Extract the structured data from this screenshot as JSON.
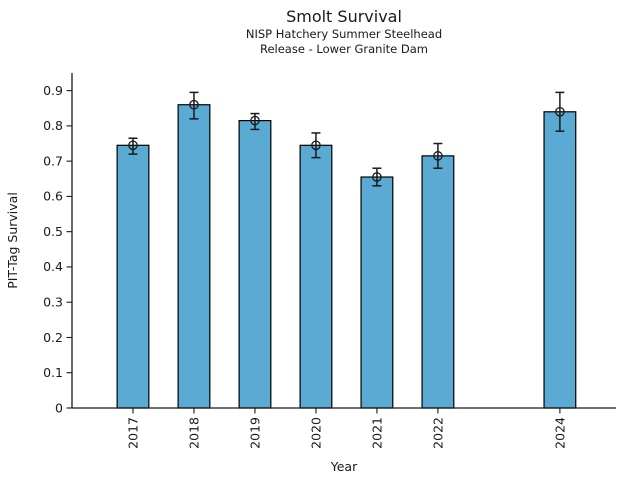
{
  "chart_data": {
    "type": "bar",
    "title": "Smolt Survival",
    "subtitle_line1": "NISP Hatchery Summer Steelhead",
    "subtitle_line2": "Release - Lower Granite Dam",
    "xlabel": "Year",
    "ylabel": "PIT-Tag Survival",
    "categories": [
      "2017",
      "2018",
      "2019",
      "2020",
      "2021",
      "2022",
      "2024"
    ],
    "x": [
      2017,
      2018,
      2019,
      2020,
      2021,
      2022,
      2024
    ],
    "values": [
      0.745,
      0.86,
      0.815,
      0.745,
      0.655,
      0.715,
      0.84
    ],
    "error_low": [
      0.72,
      0.82,
      0.79,
      0.71,
      0.63,
      0.68,
      0.785
    ],
    "error_high": [
      0.765,
      0.895,
      0.835,
      0.78,
      0.68,
      0.75,
      0.895
    ],
    "xlim": [
      2016,
      2024.92
    ],
    "ylim": [
      0,
      0.95
    ],
    "yticks": [
      0,
      0.1,
      0.2,
      0.3,
      0.4,
      0.5,
      0.6,
      0.7,
      0.8,
      0.9
    ],
    "ytick_labels": [
      "0",
      "0.1",
      "0.2",
      "0.3",
      "0.4",
      "0.5",
      "0.6",
      "0.7",
      "0.8",
      "0.9"
    ],
    "x_tick_rotation": 90,
    "bar_width_years": 0.52,
    "bar_color": "#5aaad4",
    "bar_edge_color": "#000000",
    "axis_color": "#1a1a1a",
    "error_bar_color": "#1a1a1a",
    "marker": "open-circle",
    "grid": false,
    "legend": "none",
    "background": "#ffffff"
  }
}
